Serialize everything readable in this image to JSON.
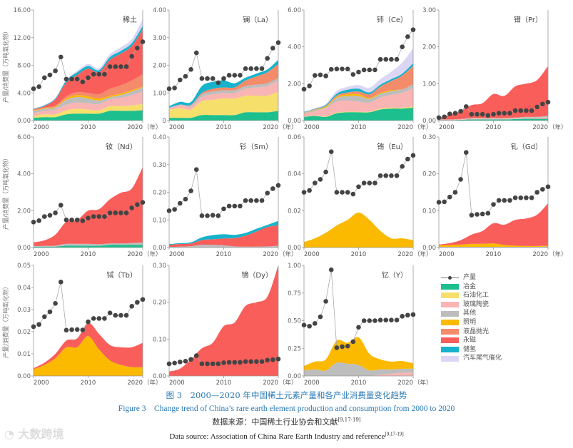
{
  "axis_ylabel": "产量/消费量（万吨氧化物）",
  "x_unit": "（年）",
  "legend": {
    "production": "产量",
    "categories": [
      {
        "key": "metal",
        "label": "冶金",
        "color": "#1dbf8f"
      },
      {
        "key": "petro",
        "label": "石油化工",
        "color": "#f6df6b"
      },
      {
        "key": "glass",
        "label": "玻璃陶瓷",
        "color": "#f9b4b4"
      },
      {
        "key": "other",
        "label": "其他",
        "color": "#bdbdbd"
      },
      {
        "key": "light",
        "label": "照明",
        "color": "#fbb900"
      },
      {
        "key": "polish",
        "label": "液晶抛光",
        "color": "#f48b6a"
      },
      {
        "key": "magnet",
        "label": "永磁",
        "color": "#f95e5a"
      },
      {
        "key": "hstore",
        "label": "储氢",
        "color": "#17b3cc"
      },
      {
        "key": "auto",
        "label": "汽车尾气催化",
        "color": "#dcd6f5"
      }
    ]
  },
  "caption": {
    "cn": "图 3　2000—2020 年中国稀土元素产量和各产业消费量变化趋势",
    "en": "Figure 3　Change trend of China’s rare earth element production and consumption from 2000 to 2020",
    "source_cn": "数据来源：中国稀土行业协会和文献",
    "source_cn_ref": "[9,17-19]",
    "source_en": "Data source: Association of China Rare Earth Industry and reference",
    "source_en_ref": "[9,17-19]"
  },
  "watermark": "大数跨境",
  "chart_data": [
    {
      "type": "area",
      "title": "稀土",
      "ylim": [
        0,
        16
      ],
      "yticks": [
        "0.00",
        "4.00",
        "8.00",
        "12.00",
        "16.00"
      ],
      "xticks": [
        "2000",
        "2010",
        "2020"
      ],
      "production": [
        4.6,
        4.9,
        6.2,
        6.6,
        7.2,
        9.2,
        6.0,
        6.0,
        6.0,
        5.6,
        6.2,
        6.7,
        6.7,
        6.7,
        7.8,
        7.8,
        7.8,
        7.8,
        9.3,
        10.5,
        11.4
      ],
      "consumption": {
        "metal": [
          0.4,
          0.5,
          0.5,
          0.9,
          1.0,
          1.0,
          1.0,
          1.4,
          1.4,
          1.4,
          1.5
        ],
        "petro": [
          0.3,
          0.4,
          0.4,
          0.6,
          0.7,
          0.6,
          0.5,
          0.7,
          0.7,
          0.8,
          0.9
        ],
        "glass": [
          0.4,
          0.5,
          0.7,
          0.8,
          0.9,
          0.9,
          0.9,
          1.0,
          1.2,
          1.5,
          1.8
        ],
        "other": [
          0.3,
          0.3,
          0.3,
          0.7,
          0.8,
          0.7,
          0.5,
          0.3,
          0.4,
          0.5,
          0.6
        ],
        "light": [
          0.05,
          0.1,
          0.1,
          0.2,
          0.3,
          0.3,
          0.3,
          0.2,
          0.2,
          0.2,
          0.1
        ],
        "polish": [
          0.1,
          0.1,
          0.2,
          0.3,
          0.4,
          0.5,
          0.6,
          1.0,
          1.2,
          1.4,
          1.8
        ],
        "magnet": [
          0.1,
          0.2,
          0.9,
          2.0,
          2.5,
          3.5,
          3.2,
          4.2,
          4.6,
          5.0,
          6.5
        ],
        "hstore": [
          0.05,
          0.1,
          0.1,
          0.3,
          0.4,
          0.4,
          0.3,
          0.4,
          0.4,
          0.4,
          0.5
        ],
        "auto": [
          0.05,
          0.1,
          0.1,
          0.1,
          0.2,
          0.3,
          0.3,
          0.4,
          0.5,
          0.6,
          1.0
        ]
      }
    },
    {
      "type": "area",
      "title": "镧（La）",
      "ylim": [
        0,
        4
      ],
      "yticks": [
        "0",
        "1.00",
        "2.00",
        "3.00",
        "4.00"
      ],
      "xticks": [
        "2000",
        "2010",
        "2020"
      ],
      "production": [
        1.15,
        1.18,
        1.47,
        1.6,
        1.85,
        2.45,
        1.52,
        1.52,
        1.52,
        1.37,
        1.52,
        1.64,
        1.64,
        1.64,
        1.88,
        1.88,
        1.88,
        1.88,
        2.25,
        2.62,
        2.82
      ],
      "consumption": {
        "metal": [
          0.1,
          0.1,
          0.1,
          0.2,
          0.2,
          0.2,
          0.2,
          0.3,
          0.3,
          0.3,
          0.35
        ],
        "petro": [
          0.3,
          0.35,
          0.3,
          0.5,
          0.55,
          0.6,
          0.6,
          0.6,
          0.6,
          0.6,
          0.7
        ],
        "glass": [
          0.05,
          0.1,
          0.1,
          0.15,
          0.2,
          0.2,
          0.2,
          0.25,
          0.3,
          0.35,
          0.4
        ],
        "other": [
          0.02,
          0.03,
          0.05,
          0.1,
          0.1,
          0.1,
          0.1,
          0.1,
          0.1,
          0.1,
          0.1
        ],
        "polish": [
          0,
          0,
          0.02,
          0.05,
          0.1,
          0.1,
          0.1,
          0.2,
          0.3,
          0.4,
          0.5
        ],
        "hstore": [
          0.05,
          0.1,
          0.1,
          0.25,
          0.25,
          0.25,
          0.15,
          0.1,
          0.1,
          0.1,
          0.15
        ]
      }
    },
    {
      "type": "area",
      "title": "铈（Ce）",
      "ylim": [
        0,
        6
      ],
      "yticks": [
        "0.00",
        "2.00",
        "4.00",
        "6.00"
      ],
      "xticks": [
        "2000",
        "2010",
        "2020"
      ],
      "production": [
        1.7,
        1.88,
        2.45,
        2.48,
        2.42,
        2.78,
        2.8,
        2.8,
        2.8,
        2.5,
        2.63,
        2.75,
        2.75,
        2.75,
        3.32,
        3.32,
        3.32,
        3.32,
        4.0,
        4.55,
        4.93
      ],
      "consumption": {
        "metal": [
          0.2,
          0.25,
          0.2,
          0.4,
          0.45,
          0.45,
          0.45,
          0.6,
          0.65,
          0.65,
          0.7
        ],
        "petro": [
          0.02,
          0.02,
          0.02,
          0.03,
          0.03,
          0.03,
          0.03,
          0.05,
          0.05,
          0.05,
          0.07
        ],
        "glass": [
          0.15,
          0.25,
          0.45,
          0.6,
          0.6,
          0.55,
          0.5,
          0.6,
          0.7,
          0.8,
          1.0
        ],
        "other": [
          0.05,
          0.05,
          0.05,
          0.2,
          0.25,
          0.3,
          0.2,
          0.2,
          0.2,
          0.2,
          0.2
        ],
        "light": [
          0.02,
          0.02,
          0.05,
          0.05,
          0.1,
          0.1,
          0.05,
          0.05,
          0.05,
          0,
          0
        ],
        "polish": [
          0.01,
          0.02,
          0.03,
          0.08,
          0.1,
          0.15,
          0.2,
          0.35,
          0.5,
          0.75,
          1.0
        ],
        "hstore": [
          0.02,
          0.03,
          0.05,
          0.1,
          0.15,
          0.15,
          0.1,
          0.1,
          0.1,
          0.1,
          0.15
        ],
        "auto": [
          0.02,
          0.03,
          0.05,
          0.15,
          0.15,
          0.2,
          0.25,
          0.3,
          0.4,
          0.6,
          0.8
        ]
      }
    },
    {
      "type": "area",
      "title": "镨（Pr）",
      "ylim": [
        0,
        3
      ],
      "yticks": [
        "0.00",
        "1.00",
        "2.00",
        "3.00"
      ],
      "xticks": [
        "2000",
        "2010",
        "2020"
      ],
      "production": [
        0.08,
        0.1,
        0.18,
        0.2,
        0.25,
        0.38,
        0.17,
        0.17,
        0.17,
        0.14,
        0.17,
        0.2,
        0.2,
        0.2,
        0.27,
        0.27,
        0.27,
        0.27,
        0.37,
        0.45,
        0.5
      ],
      "consumption": {
        "metal": [
          0.01,
          0.01,
          0.02,
          0.03,
          0.03,
          0.03,
          0.03,
          0.04,
          0.05,
          0.05,
          0.05
        ],
        "glass": [
          0.01,
          0.01,
          0.01,
          0.02,
          0.02,
          0.02,
          0.02,
          0.02,
          0.03,
          0.03,
          0.05
        ],
        "other": [
          0.01,
          0.01,
          0.01,
          0.02,
          0.02,
          0.02,
          0.02,
          0.02,
          0.02,
          0.02,
          0.03
        ],
        "magnet": [
          0.05,
          0.12,
          0.22,
          0.35,
          0.4,
          0.65,
          0.6,
          0.85,
          0.9,
          1.0,
          1.35
        ]
      }
    },
    {
      "type": "area",
      "title": "钕（Nd）",
      "ylim": [
        0,
        6
      ],
      "yticks": [
        "0.00",
        "2.00",
        "4.00",
        "6.00"
      ],
      "xticks": [
        "2000",
        "2010",
        "2020"
      ],
      "production": [
        1.38,
        1.46,
        1.68,
        1.75,
        1.88,
        2.3,
        1.5,
        1.5,
        1.5,
        1.45,
        1.6,
        1.68,
        1.68,
        1.68,
        1.88,
        1.88,
        1.88,
        1.88,
        2.15,
        2.33,
        2.45
      ],
      "consumption": {
        "metal": [
          0.05,
          0.05,
          0.05,
          0.1,
          0.1,
          0.1,
          0.1,
          0.15,
          0.15,
          0.15,
          0.15
        ],
        "other": [
          0.03,
          0.04,
          0.05,
          0.1,
          0.1,
          0.1,
          0.08,
          0.07,
          0.07,
          0.1,
          0.12
        ],
        "magnet": [
          0.2,
          0.3,
          0.6,
          1.2,
          1.3,
          1.8,
          1.9,
          2.4,
          2.75,
          2.95,
          4.1
        ]
      }
    },
    {
      "type": "area",
      "title": "钐（Sm）",
      "ylim": [
        0,
        0.4
      ],
      "yticks": [
        "0.00",
        "0.10",
        "0.20",
        "0.30",
        "0.40"
      ],
      "xticks": [
        "2000",
        "2010",
        "2020"
      ],
      "production": [
        0.133,
        0.138,
        0.16,
        0.175,
        0.205,
        0.282,
        0.115,
        0.115,
        0.117,
        0.115,
        0.14,
        0.15,
        0.15,
        0.15,
        0.17,
        0.17,
        0.17,
        0.17,
        0.197,
        0.213,
        0.225
      ],
      "consumption": {
        "other": [
          0.002,
          0.003,
          0.005,
          0.01,
          0.01,
          0.008,
          0.004,
          0.003,
          0.003,
          0.004,
          0.006
        ],
        "magnet": [
          0.008,
          0.01,
          0.01,
          0.017,
          0.02,
          0.025,
          0.03,
          0.04,
          0.055,
          0.07,
          0.075
        ],
        "hstore": [
          0.002,
          0.003,
          0.004,
          0.01,
          0.015,
          0.015,
          0.012,
          0.01,
          0.01,
          0.008,
          0.015
        ]
      }
    },
    {
      "type": "area",
      "title": "铕（Eu）",
      "ylim": [
        0,
        0.06
      ],
      "yticks": [
        "0.00",
        "0.02",
        "0.04",
        "0.06"
      ],
      "xticks": [
        "2000",
        "2010",
        "2020"
      ],
      "production": [
        0.03,
        0.031,
        0.035,
        0.037,
        0.041,
        0.052,
        0.03,
        0.03,
        0.03,
        0.029,
        0.033,
        0.035,
        0.035,
        0.035,
        0.039,
        0.039,
        0.039,
        0.039,
        0.044,
        0.048,
        0.05
      ],
      "consumption": {
        "light": [
          0.003,
          0.005,
          0.008,
          0.012,
          0.015,
          0.019,
          0.015,
          0.009,
          0.005,
          0.005,
          0.004
        ]
      }
    },
    {
      "type": "area",
      "title": "钆（Gd）",
      "ylim": [
        0,
        0.3
      ],
      "yticks": [
        "0.00",
        "0.10",
        "0.20",
        "0.30"
      ],
      "xticks": [
        "2000",
        "2010",
        "2020"
      ],
      "production": [
        0.123,
        0.124,
        0.137,
        0.15,
        0.185,
        0.258,
        0.088,
        0.09,
        0.091,
        0.093,
        0.117,
        0.128,
        0.128,
        0.128,
        0.135,
        0.135,
        0.135,
        0.135,
        0.15,
        0.158,
        0.165
      ],
      "consumption": {
        "other": [
          0.002,
          0.002,
          0.002,
          0.002,
          0.002,
          0.002,
          0.002,
          0.002,
          0.002,
          0.002,
          0.003
        ],
        "light": [
          0.004,
          0.005,
          0.006,
          0.008,
          0.008,
          0.009,
          0.005,
          0.003,
          0.002,
          0.002,
          0.002
        ],
        "magnet": [
          0.002,
          0.005,
          0.012,
          0.025,
          0.035,
          0.055,
          0.055,
          0.07,
          0.075,
          0.085,
          0.115
        ]
      }
    },
    {
      "type": "area",
      "title": "铽（Tb）",
      "ylim": [
        0,
        0.05
      ],
      "yticks": [
        "0.00",
        "0.01",
        "0.02",
        "0.03",
        "0.04",
        "0.05"
      ],
      "xticks": [
        "2000",
        "2010",
        "2020"
      ],
      "production": [
        0.0223,
        0.0233,
        0.0268,
        0.029,
        0.0328,
        0.0425,
        0.0207,
        0.0209,
        0.021,
        0.0208,
        0.0245,
        0.026,
        0.026,
        0.026,
        0.0285,
        0.0274,
        0.0274,
        0.0274,
        0.0315,
        0.0333,
        0.0346
      ],
      "consumption": {
        "light": [
          0.003,
          0.005,
          0.008,
          0.013,
          0.013,
          0.018,
          0.012,
          0.007,
          0.005,
          0.004,
          0.004
        ],
        "magnet": [
          0.0005,
          0.001,
          0.002,
          0.003,
          0.004,
          0.006,
          0.007,
          0.007,
          0.008,
          0.009,
          0.011
        ]
      }
    },
    {
      "type": "area",
      "title": "镝（Dy）",
      "ylim": [
        0,
        0.3
      ],
      "yticks": [
        "0.00",
        "0.10",
        "0.20",
        "0.30"
      ],
      "xticks": [
        "2000",
        "2010",
        "2020"
      ],
      "production": [
        0.033,
        0.035,
        0.038,
        0.04,
        0.045,
        0.055,
        0.033,
        0.033,
        0.033,
        0.033,
        0.036,
        0.037,
        0.037,
        0.037,
        0.039,
        0.039,
        0.039,
        0.039,
        0.043,
        0.044,
        0.046
      ],
      "consumption": {
        "magnet": [
          0.012,
          0.02,
          0.045,
          0.075,
          0.09,
          0.135,
          0.145,
          0.19,
          0.2,
          0.215,
          0.3
        ]
      }
    },
    {
      "type": "area",
      "title": "钇（Y）",
      "ylim": [
        0,
        1
      ],
      "yticks": [
        "0.00",
        "0.25",
        "0.50",
        "0.75",
        "1.00"
      ],
      "xticks": [
        "2000",
        "2010",
        "2020"
      ],
      "production": [
        0.46,
        0.45,
        0.475,
        0.535,
        0.675,
        0.96,
        0.255,
        0.265,
        0.27,
        0.31,
        0.44,
        0.5,
        0.5,
        0.5,
        0.505,
        0.505,
        0.505,
        0.505,
        0.54,
        0.55,
        0.555
      ],
      "consumption": {
        "glass": [
          0,
          0,
          0,
          0,
          0,
          0,
          0,
          0.01,
          0.02,
          0.03,
          0.03
        ],
        "other": [
          0.05,
          0.06,
          0.05,
          0.12,
          0.11,
          0.1,
          0.05,
          0.05,
          0.04,
          0.035,
          0.035
        ],
        "light": [
          0.04,
          0.07,
          0.1,
          0.2,
          0.19,
          0.25,
          0.15,
          0.09,
          0.07,
          0.07,
          0.05
        ]
      }
    }
  ]
}
